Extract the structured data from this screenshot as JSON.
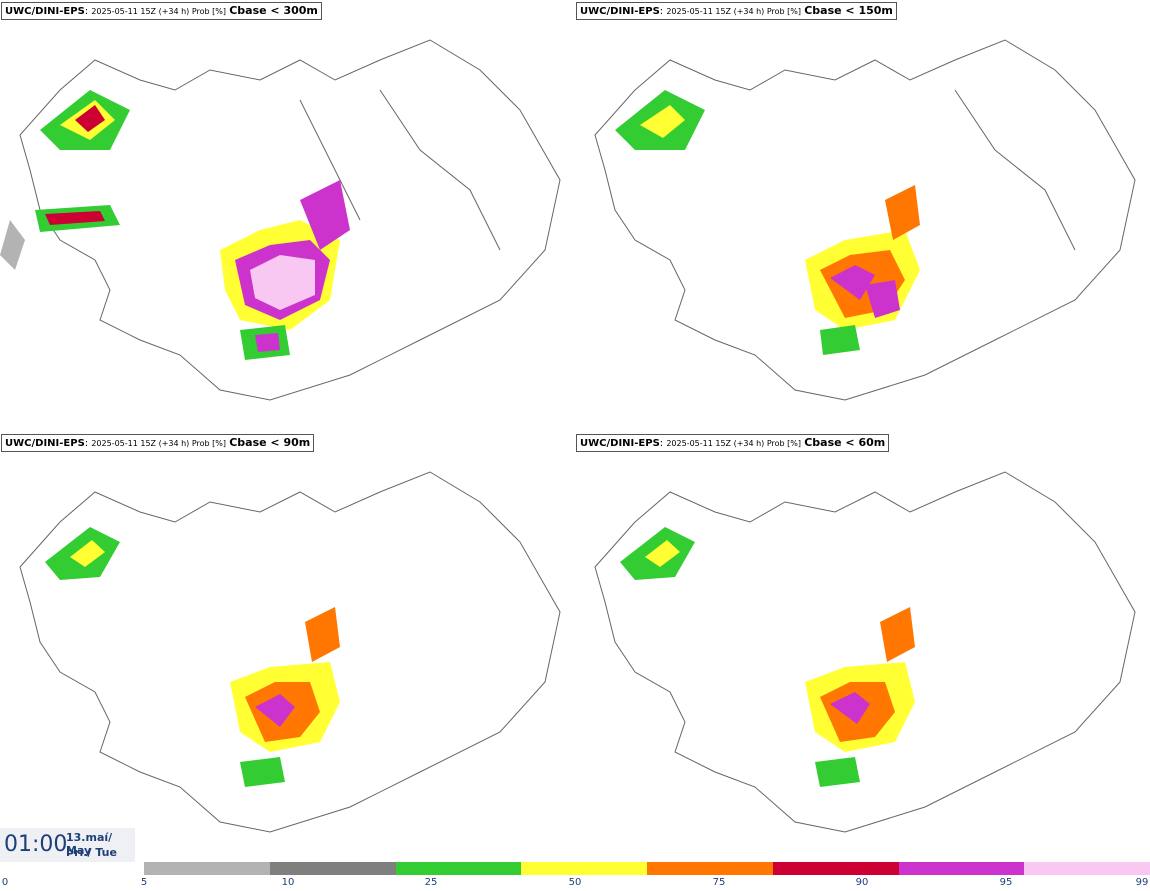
{
  "panels": [
    {
      "model": "UWC/DINI-EPS",
      "meta": "2025-05-11 15Z (+34 h) Prob [%]",
      "threshold": "Cbase < 300m"
    },
    {
      "model": "UWC/DINI-EPS",
      "meta": "2025-05-11 15Z (+34 h) Prob [%]",
      "threshold": "Cbase < 150m"
    },
    {
      "model": "UWC/DINI-EPS",
      "meta": "2025-05-11 15Z (+34 h) Prob [%]",
      "threshold": "Cbase < 90m"
    },
    {
      "model": "UWC/DINI-EPS",
      "meta": "2025-05-11 15Z (+34 h) Prob [%]",
      "threshold": "Cbase < 60m"
    }
  ],
  "time": {
    "clock": "01:00",
    "date_line1": "13.maí/ May",
    "date_line2": "Þri./ Tue"
  },
  "legend": {
    "colors": [
      "#b3b3b3",
      "#7f7f7f",
      "#33cc33",
      "#ffff33",
      "#ff7700",
      "#cc0033",
      "#cc33cc",
      "#f8c8f2"
    ],
    "ticks": [
      "0",
      "5",
      "10",
      "25",
      "50",
      "75",
      "90",
      "95",
      "99"
    ]
  }
}
